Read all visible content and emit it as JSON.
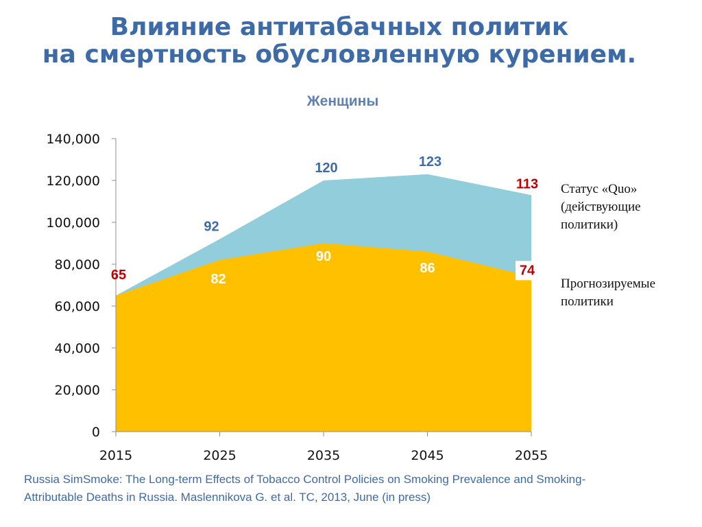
{
  "title": {
    "line1": "Влияние антитабачных политик",
    "line2": "на смертность обусловленную курением."
  },
  "legend": {
    "quo_lines": [
      "Статус «Quo»",
      "(действующие",
      "политики)"
    ],
    "policy_lines": [
      "Прогнозируемые",
      "политики"
    ]
  },
  "citation": {
    "line1": "Russia SimSmoke:  The Long-term Effects of Tobacco Control Policies on Smoking Prevalence and Smoking-",
    "line2": "Attributable Deaths in Russia.  Maslennikova  G. et al. TC, 2013, June (in press)"
  },
  "chart_data": {
    "type": "area",
    "title": "Женщины",
    "x": [
      2015,
      2025,
      2035,
      2045,
      2055
    ],
    "ylim": [
      0,
      140000
    ],
    "yticks": [
      0,
      20000,
      40000,
      60000,
      80000,
      100000,
      120000,
      140000
    ],
    "ytick_labels": [
      "0",
      "20,000",
      "40,000",
      "60,000",
      "80,000",
      "100,000",
      "120,000",
      "140,000"
    ],
    "series": [
      {
        "values": [
          65000,
          92000,
          120000,
          123000,
          113000
        ],
        "labels": [
          "",
          "92",
          "120",
          "123",
          "113"
        ],
        "color": "#92cddc",
        "label_color": "#3d6ba8"
      },
      {
        "values": [
          65000,
          82000,
          90000,
          86000,
          74000
        ],
        "labels": [
          "65",
          "82",
          "90",
          "86",
          "74"
        ],
        "color": "#ffc000",
        "label_color": "#ffffff"
      }
    ],
    "highlight_color": "#c00000"
  }
}
